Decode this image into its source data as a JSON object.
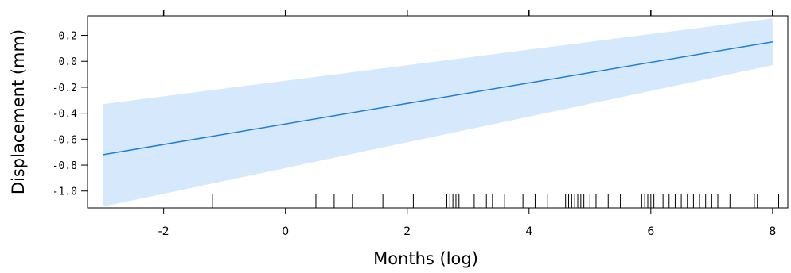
{
  "chart_data": {
    "type": "line",
    "title": "",
    "xlabel": "Months (log)",
    "ylabel": "Displacement (mm)",
    "xlim": [
      -3.25,
      8.25
    ],
    "ylim": [
      -1.13,
      0.35
    ],
    "xticks": [
      -2,
      0,
      2,
      4,
      6,
      8
    ],
    "xtick_labels": [
      "-2",
      "0",
      "2",
      "4",
      "6",
      "8"
    ],
    "yticks": [
      0.2,
      0.0,
      -0.2,
      -0.4,
      -0.6,
      -0.8,
      -1.0
    ],
    "ytick_labels": [
      "0.2",
      "0.0",
      "-0.2",
      "-0.4",
      "-0.6",
      "-0.8",
      "-1.0"
    ],
    "grid": false,
    "series": [
      {
        "x": [
          -3,
          8
        ],
        "y": [
          -0.72,
          0.15
        ],
        "ci_lower": [
          -1.12,
          -0.03
        ],
        "ci_upper": [
          -0.33,
          0.33
        ],
        "color": "#1f7fd6",
        "band_color": "#d6e8fb"
      }
    ],
    "rug_x": [
      -1.2,
      0.5,
      0.8,
      1.1,
      1.6,
      2.1,
      2.65,
      2.7,
      2.75,
      2.8,
      2.85,
      3.1,
      3.3,
      3.4,
      3.6,
      3.9,
      4.1,
      4.3,
      4.6,
      4.65,
      4.7,
      4.75,
      4.8,
      4.85,
      4.9,
      5.0,
      5.1,
      5.3,
      5.5,
      5.85,
      5.9,
      5.95,
      6.0,
      6.05,
      6.1,
      6.2,
      6.3,
      6.4,
      6.5,
      6.6,
      6.7,
      6.8,
      6.9,
      7.0,
      7.1,
      7.3,
      7.7,
      7.75,
      8.1
    ]
  }
}
